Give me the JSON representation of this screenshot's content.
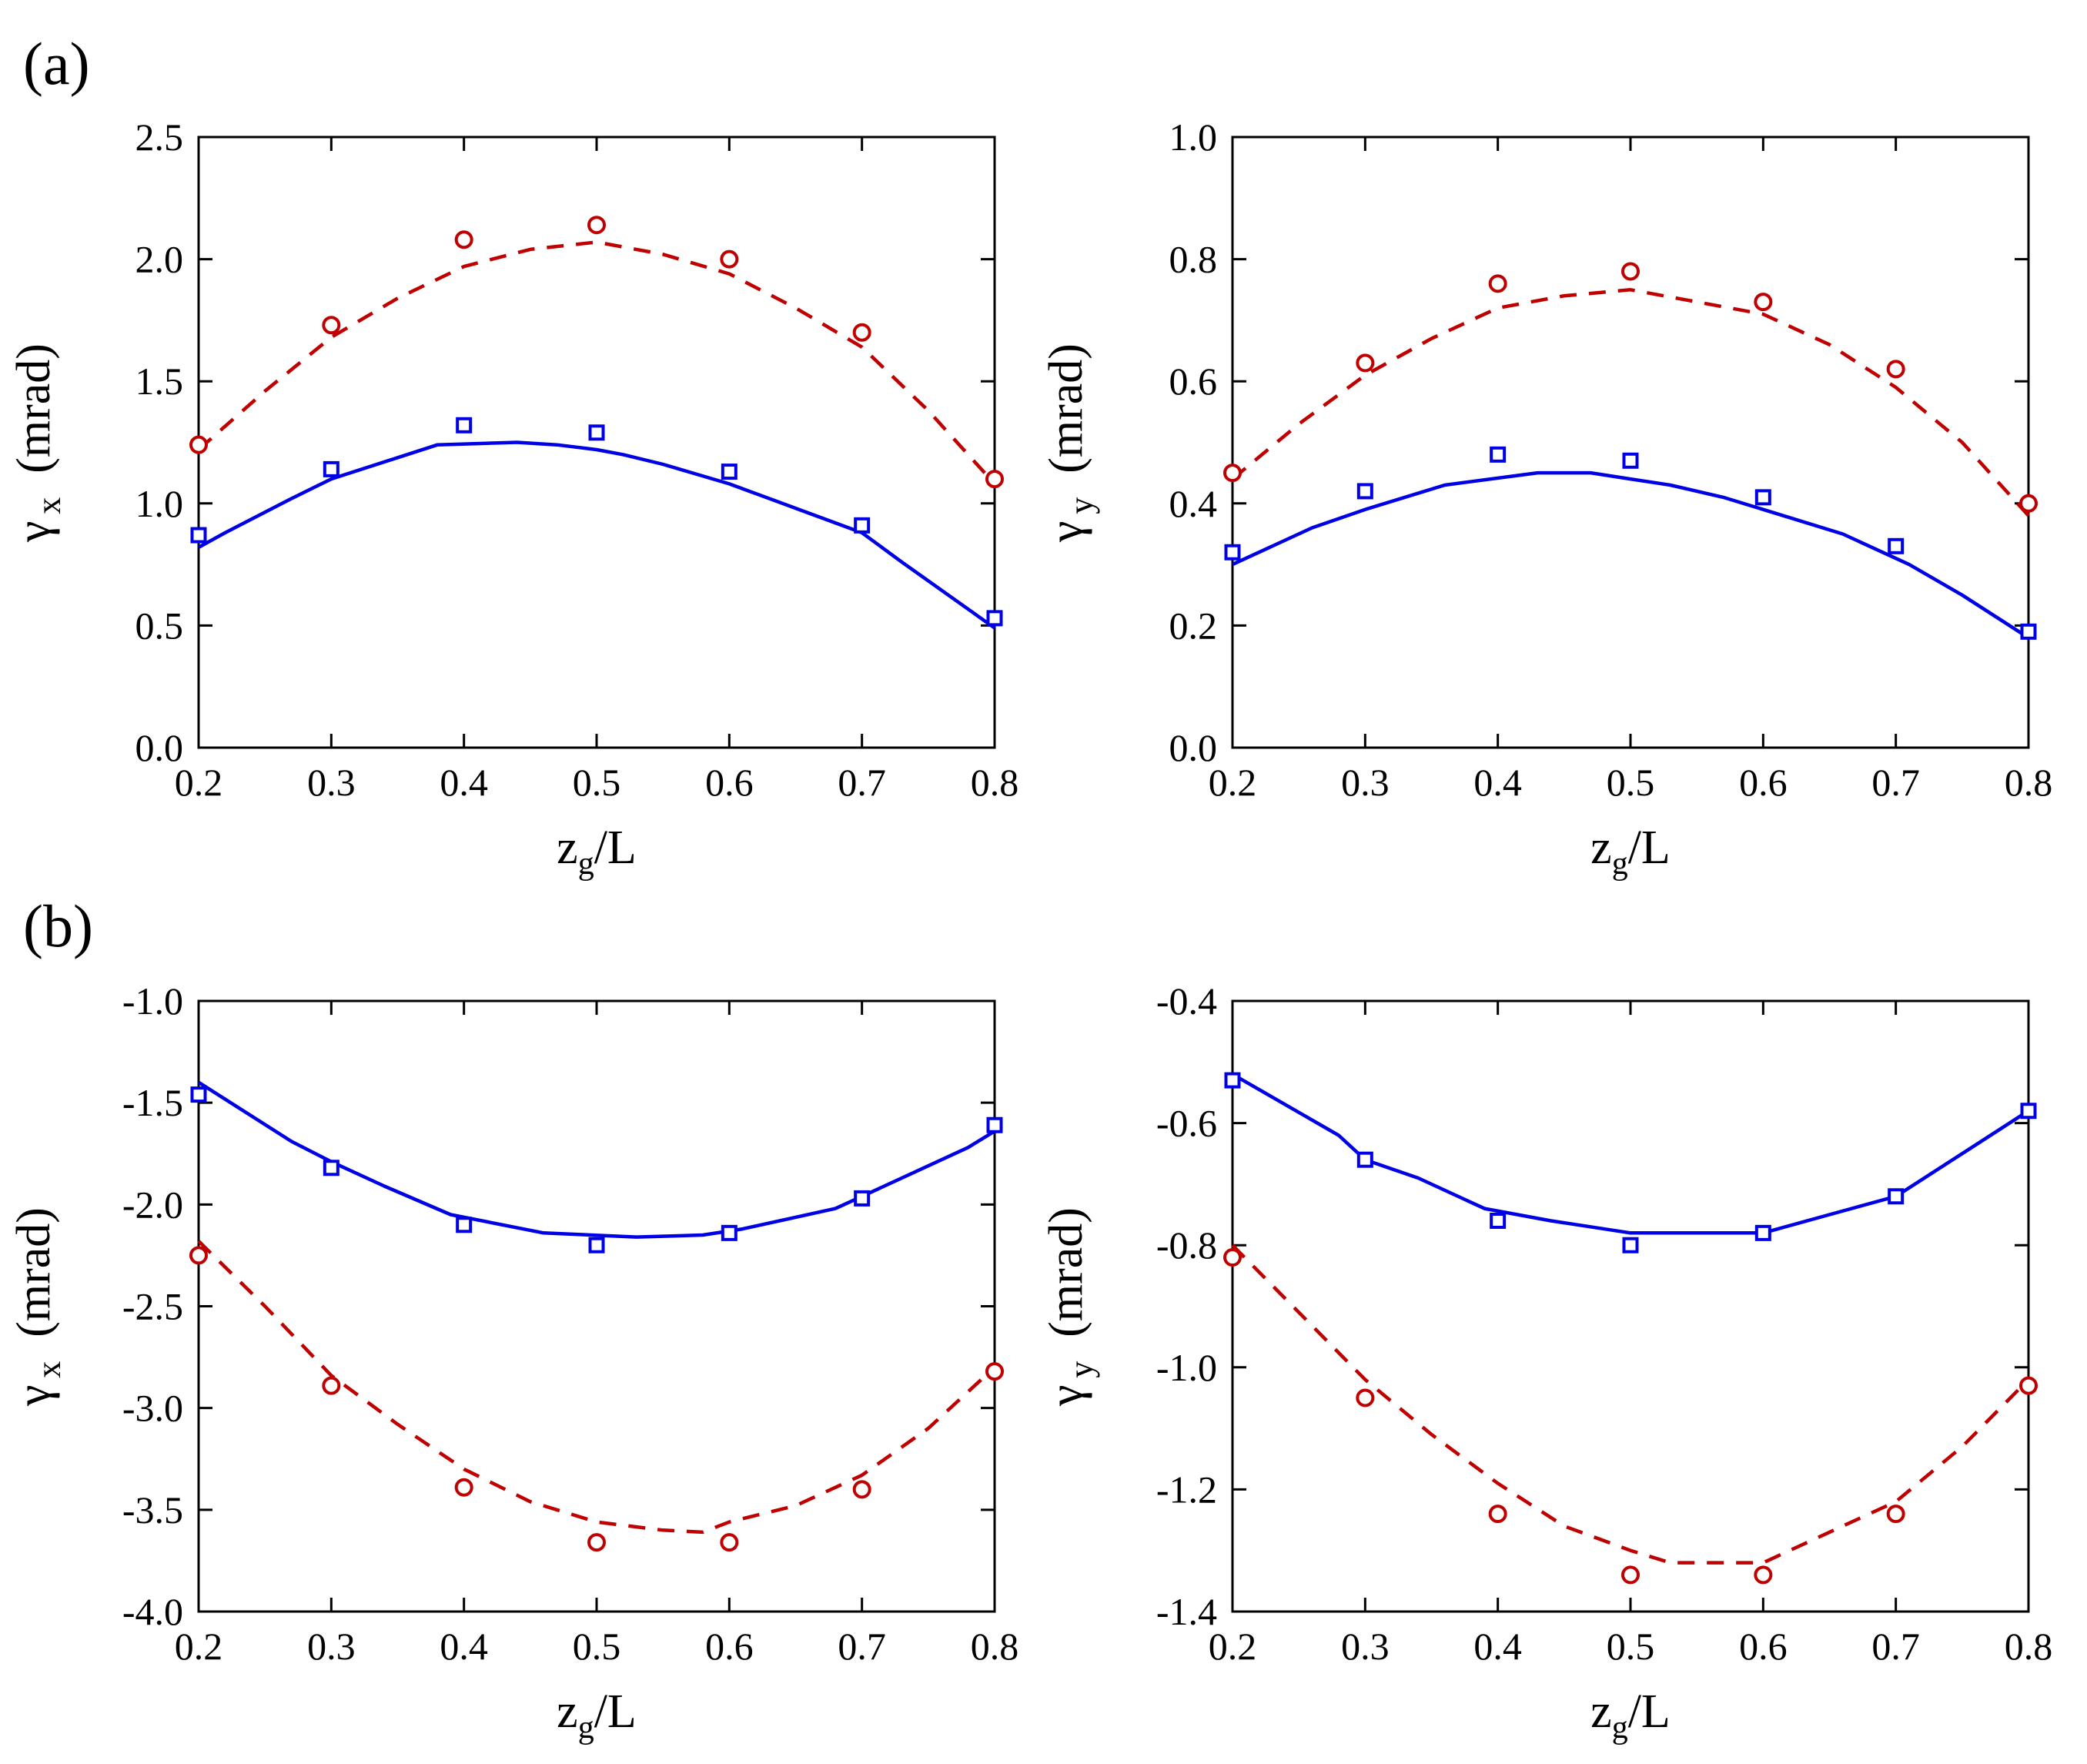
{
  "panel_labels": [
    "(a)",
    "(b)"
  ],
  "colors": {
    "model_solid": "#0000e6",
    "model_dashed": "#c00000",
    "axis": "#000000"
  },
  "chart_data": [
    {
      "type": "line",
      "panel": "(a)",
      "xlabel": "z_g/L",
      "ylabel": "γ x (mrad)",
      "xlim": [
        0.2,
        0.8
      ],
      "ylim": [
        0.0,
        2.5
      ],
      "xticks": [
        0.2,
        0.3,
        0.4,
        0.5,
        0.6,
        0.7,
        0.8
      ],
      "yticks": [
        0.0,
        0.5,
        1.0,
        1.5,
        2.0,
        2.5
      ],
      "yfmt": 1,
      "series": [
        {
          "name": "blue-line",
          "style": "solid",
          "color": "#0000e6",
          "x": [
            0.2,
            0.22,
            0.27,
            0.3,
            0.38,
            0.44,
            0.47,
            0.5,
            0.52,
            0.55,
            0.6,
            0.65,
            0.7,
            0.73,
            0.8
          ],
          "y": [
            0.82,
            0.88,
            1.02,
            1.1,
            1.24,
            1.25,
            1.24,
            1.22,
            1.2,
            1.16,
            1.08,
            0.98,
            0.88,
            0.76,
            0.49
          ]
        },
        {
          "name": "red-dashed-line",
          "style": "dashed",
          "color": "#c00000",
          "x": [
            0.2,
            0.25,
            0.3,
            0.35,
            0.4,
            0.45,
            0.5,
            0.55,
            0.6,
            0.65,
            0.7,
            0.75,
            0.8
          ],
          "y": [
            1.22,
            1.46,
            1.68,
            1.84,
            1.97,
            2.04,
            2.07,
            2.02,
            1.94,
            1.8,
            1.64,
            1.38,
            1.08
          ]
        },
        {
          "name": "blue-squares",
          "style": "square",
          "color": "#0000e6",
          "x": [
            0.2,
            0.3,
            0.4,
            0.5,
            0.6,
            0.7,
            0.8
          ],
          "y": [
            0.87,
            1.14,
            1.32,
            1.29,
            1.13,
            0.91,
            0.53
          ]
        },
        {
          "name": "red-circles",
          "style": "circle",
          "color": "#c00000",
          "x": [
            0.2,
            0.3,
            0.4,
            0.5,
            0.6,
            0.7,
            0.8
          ],
          "y": [
            1.24,
            1.73,
            2.08,
            2.14,
            2.0,
            1.7,
            1.1
          ]
        }
      ]
    },
    {
      "type": "line",
      "panel": "(a)",
      "xlabel": "z_g/L",
      "ylabel": "γ y (mrad)",
      "xlim": [
        0.2,
        0.8
      ],
      "ylim": [
        0.0,
        1.0
      ],
      "xticks": [
        0.2,
        0.3,
        0.4,
        0.5,
        0.6,
        0.7,
        0.8
      ],
      "yticks": [
        0.0,
        0.2,
        0.4,
        0.6,
        0.8,
        1.0
      ],
      "yfmt": 1,
      "series": [
        {
          "name": "blue-line",
          "style": "solid",
          "color": "#0000e6",
          "x": [
            0.2,
            0.26,
            0.3,
            0.36,
            0.43,
            0.47,
            0.5,
            0.53,
            0.57,
            0.6,
            0.66,
            0.7,
            0.71,
            0.75,
            0.8
          ],
          "y": [
            0.3,
            0.36,
            0.39,
            0.43,
            0.45,
            0.45,
            0.44,
            0.43,
            0.41,
            0.39,
            0.35,
            0.31,
            0.3,
            0.25,
            0.18
          ]
        },
        {
          "name": "red-dashed-line",
          "style": "dashed",
          "color": "#c00000",
          "x": [
            0.2,
            0.25,
            0.3,
            0.35,
            0.4,
            0.45,
            0.5,
            0.55,
            0.6,
            0.65,
            0.7,
            0.75,
            0.8
          ],
          "y": [
            0.44,
            0.53,
            0.61,
            0.67,
            0.72,
            0.74,
            0.75,
            0.73,
            0.71,
            0.66,
            0.59,
            0.5,
            0.38
          ]
        },
        {
          "name": "blue-squares",
          "style": "square",
          "color": "#0000e6",
          "x": [
            0.2,
            0.3,
            0.4,
            0.5,
            0.6,
            0.7,
            0.8
          ],
          "y": [
            0.32,
            0.42,
            0.48,
            0.47,
            0.41,
            0.33,
            0.19
          ]
        },
        {
          "name": "red-circles",
          "style": "circle",
          "color": "#c00000",
          "x": [
            0.2,
            0.3,
            0.4,
            0.5,
            0.6,
            0.7,
            0.8
          ],
          "y": [
            0.45,
            0.63,
            0.76,
            0.78,
            0.73,
            0.62,
            0.4
          ]
        }
      ]
    },
    {
      "type": "line",
      "panel": "(b)",
      "xlabel": "z_g/L",
      "ylabel": "γ x (mrad)",
      "xlim": [
        0.2,
        0.8
      ],
      "ylim": [
        -4.0,
        -1.0
      ],
      "xticks": [
        0.2,
        0.3,
        0.4,
        0.5,
        0.6,
        0.7,
        0.8
      ],
      "yticks": [
        -4.0,
        -3.5,
        -3.0,
        -2.5,
        -2.0,
        -1.5,
        -1.0
      ],
      "yfmt": 1,
      "series": [
        {
          "name": "blue-line",
          "style": "solid",
          "color": "#0000e6",
          "x": [
            0.2,
            0.27,
            0.3,
            0.34,
            0.39,
            0.46,
            0.53,
            0.58,
            0.61,
            0.68,
            0.7,
            0.78,
            0.8
          ],
          "y": [
            -1.4,
            -1.69,
            -1.79,
            -1.91,
            -2.05,
            -2.14,
            -2.16,
            -2.15,
            -2.12,
            -2.02,
            -1.96,
            -1.72,
            -1.64
          ]
        },
        {
          "name": "red-dashed-line",
          "style": "dashed",
          "color": "#c00000",
          "x": [
            0.2,
            0.25,
            0.3,
            0.35,
            0.4,
            0.45,
            0.5,
            0.55,
            0.58,
            0.6,
            0.65,
            0.7,
            0.75,
            0.8
          ],
          "y": [
            -2.18,
            -2.5,
            -2.84,
            -3.08,
            -3.3,
            -3.46,
            -3.56,
            -3.6,
            -3.61,
            -3.56,
            -3.48,
            -3.33,
            -3.1,
            -2.8
          ]
        },
        {
          "name": "blue-squares",
          "style": "square",
          "color": "#0000e6",
          "x": [
            0.2,
            0.3,
            0.4,
            0.5,
            0.6,
            0.7,
            0.8
          ],
          "y": [
            -1.46,
            -1.82,
            -2.1,
            -2.2,
            -2.14,
            -1.97,
            -1.61
          ]
        },
        {
          "name": "red-circles",
          "style": "circle",
          "color": "#c00000",
          "x": [
            0.2,
            0.3,
            0.4,
            0.5,
            0.6,
            0.7,
            0.8
          ],
          "y": [
            -2.25,
            -2.89,
            -3.39,
            -3.66,
            -3.66,
            -3.4,
            -2.82
          ]
        }
      ]
    },
    {
      "type": "line",
      "panel": "(b)",
      "xlabel": "z_g/L",
      "ylabel": "γ y (mrad)",
      "xlim": [
        0.2,
        0.8
      ],
      "ylim": [
        -1.4,
        -0.4
      ],
      "xticks": [
        0.2,
        0.3,
        0.4,
        0.5,
        0.6,
        0.7,
        0.8
      ],
      "yticks": [
        -1.4,
        -1.2,
        -1.0,
        -0.8,
        -0.6,
        -0.4
      ],
      "yfmt": 1,
      "series": [
        {
          "name": "blue-line",
          "style": "solid",
          "color": "#0000e6",
          "x": [
            0.2,
            0.28,
            0.3,
            0.34,
            0.39,
            0.44,
            0.5,
            0.55,
            0.6,
            0.65,
            0.7,
            0.75,
            0.8
          ],
          "y": [
            -0.52,
            -0.62,
            -0.66,
            -0.69,
            -0.74,
            -0.76,
            -0.78,
            -0.78,
            -0.78,
            -0.75,
            -0.72,
            -0.65,
            -0.58
          ]
        },
        {
          "name": "red-dashed-line",
          "style": "dashed",
          "color": "#c00000",
          "x": [
            0.2,
            0.25,
            0.3,
            0.35,
            0.4,
            0.45,
            0.5,
            0.53,
            0.55,
            0.6,
            0.65,
            0.7,
            0.75,
            0.8
          ],
          "y": [
            -0.8,
            -0.91,
            -1.02,
            -1.11,
            -1.19,
            -1.26,
            -1.3,
            -1.32,
            -1.32,
            -1.32,
            -1.27,
            -1.22,
            -1.13,
            -1.02
          ]
        },
        {
          "name": "blue-squares",
          "style": "square",
          "color": "#0000e6",
          "x": [
            0.2,
            0.3,
            0.4,
            0.5,
            0.6,
            0.7,
            0.8
          ],
          "y": [
            -0.53,
            -0.66,
            -0.76,
            -0.8,
            -0.78,
            -0.72,
            -0.58
          ]
        },
        {
          "name": "red-circles",
          "style": "circle",
          "color": "#c00000",
          "x": [
            0.2,
            0.3,
            0.4,
            0.5,
            0.6,
            0.7,
            0.8
          ],
          "y": [
            -0.82,
            -1.05,
            -1.24,
            -1.34,
            -1.34,
            -1.24,
            -1.03
          ]
        }
      ]
    }
  ]
}
